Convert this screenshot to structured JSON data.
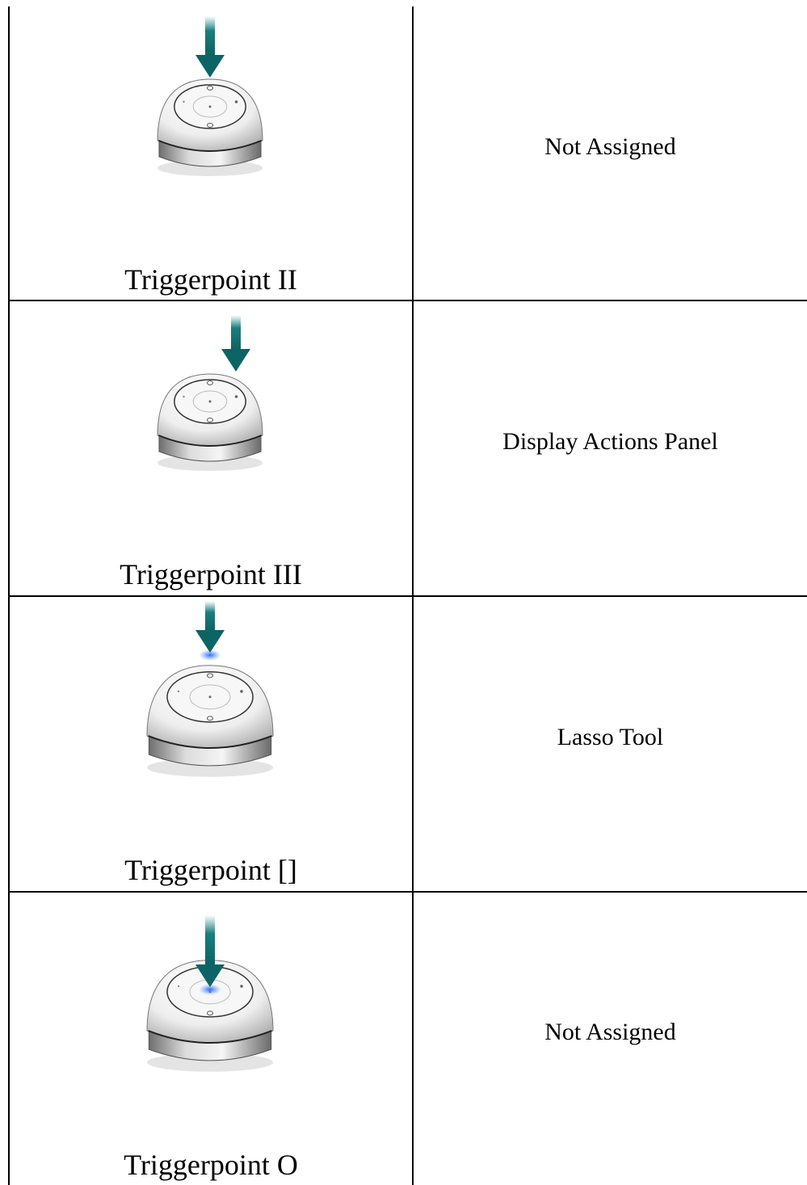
{
  "table": {
    "rows": [
      [
        "Triggerpoint II",
        "Not Assigned"
      ],
      [
        "Triggerpoint III",
        "Display Actions Panel"
      ],
      [
        "Triggerpoint []",
        "Lasso Tool"
      ],
      [
        "Triggerpoint O",
        "Not Assigned"
      ]
    ]
  }
}
